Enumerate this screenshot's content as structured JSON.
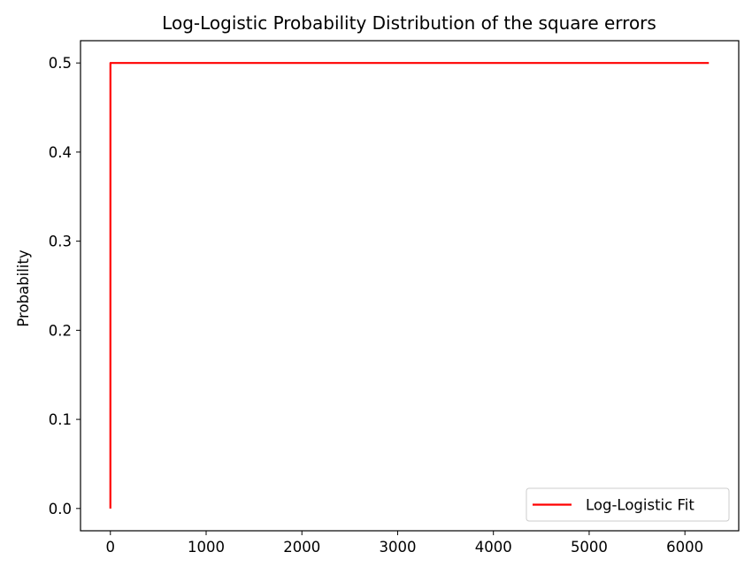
{
  "chart_data": {
    "type": "line",
    "title": "Log-Logistic Probability Distribution of the square errors",
    "xlabel": "",
    "ylabel": "Probability",
    "xlim": [
      -312,
      6562
    ],
    "ylim": [
      -0.025,
      0.525
    ],
    "xticks": [
      0,
      1000,
      2000,
      3000,
      4000,
      5000,
      6000
    ],
    "xtick_labels": [
      "0",
      "1000",
      "2000",
      "3000",
      "4000",
      "5000",
      "6000"
    ],
    "yticks": [
      0.0,
      0.1,
      0.2,
      0.3,
      0.4,
      0.5
    ],
    "ytick_labels": [
      "0.0",
      "0.1",
      "0.2",
      "0.3",
      "0.4",
      "0.5"
    ],
    "grid": false,
    "legend_position": "lower-right",
    "series": [
      {
        "name": "Log-Logistic Fit",
        "color": "#ff0000",
        "x": [
          0,
          0.5,
          1,
          5,
          10,
          50,
          100,
          500,
          1000,
          2000,
          3000,
          4000,
          5000,
          6000,
          6250
        ],
        "y": [
          0.0,
          0.4999,
          0.5,
          0.5,
          0.5,
          0.5,
          0.5,
          0.5,
          0.5,
          0.5,
          0.5,
          0.5,
          0.5,
          0.5,
          0.5
        ]
      }
    ]
  }
}
